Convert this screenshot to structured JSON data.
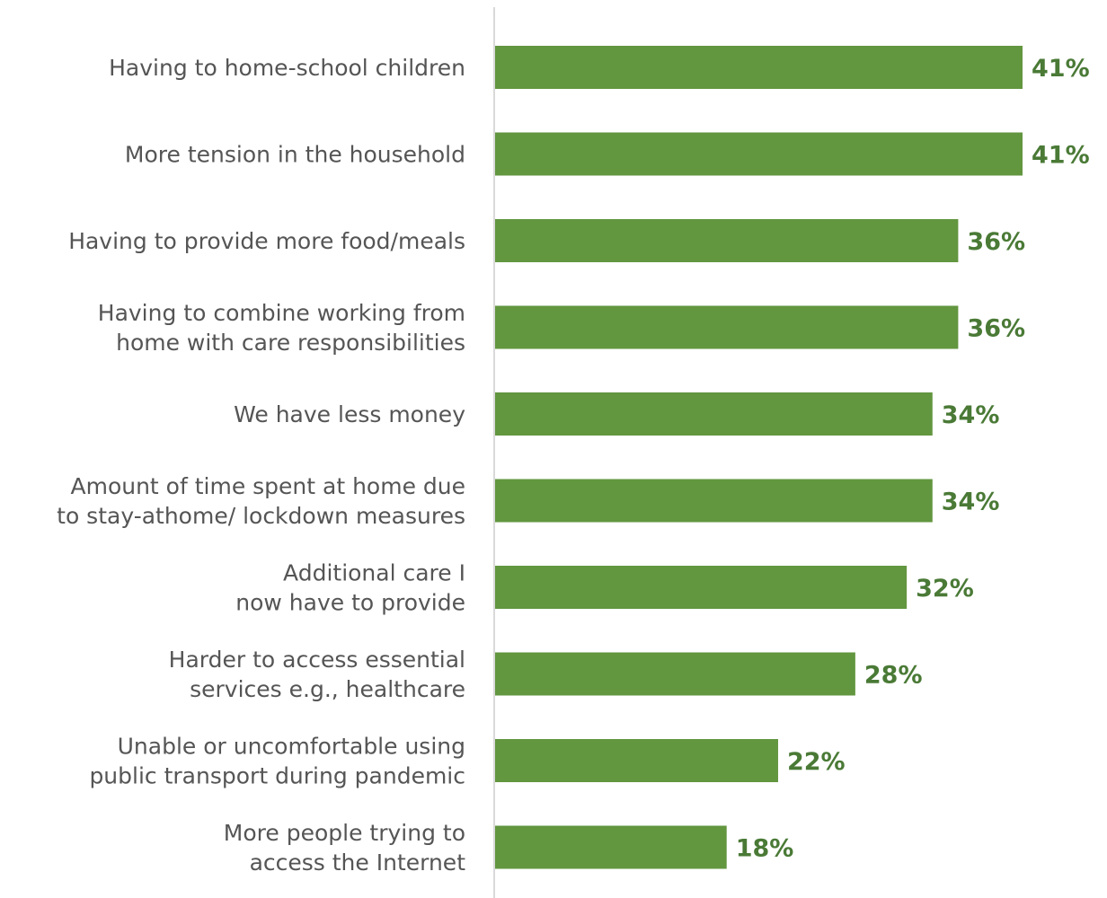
{
  "colors": {
    "bar": "#62963f",
    "value_label": "#4a7a36",
    "category_label": "#555555",
    "axis_line": "#d9d9d9"
  },
  "chart_data": {
    "type": "bar",
    "orientation": "horizontal",
    "title": "",
    "xlabel": "",
    "ylabel": "",
    "xlim": [
      0,
      41
    ],
    "value_suffix": "%",
    "categories": [
      [
        "Having to home-school children"
      ],
      [
        "More tension in the household"
      ],
      [
        "Having to provide more food/meals"
      ],
      [
        "Having to combine working from",
        "home with care responsibilities"
      ],
      [
        "We have less money"
      ],
      [
        "Amount of time spent at home due",
        "to stay-athome/ lockdown measures"
      ],
      [
        "Additional care I",
        "now have to provide"
      ],
      [
        "Harder to access essential",
        "services e.g., healthcare"
      ],
      [
        "Unable or uncomfortable using",
        "public transport during pandemic"
      ],
      [
        "More people trying to",
        "access the Internet"
      ]
    ],
    "values": [
      41,
      41,
      36,
      36,
      34,
      34,
      32,
      28,
      22,
      18
    ],
    "value_labels": [
      "41%",
      "41%",
      "36%",
      "36%",
      "34%",
      "34%",
      "32%",
      "28%",
      "22%",
      "18%"
    ],
    "grid": false,
    "legend": "none"
  }
}
